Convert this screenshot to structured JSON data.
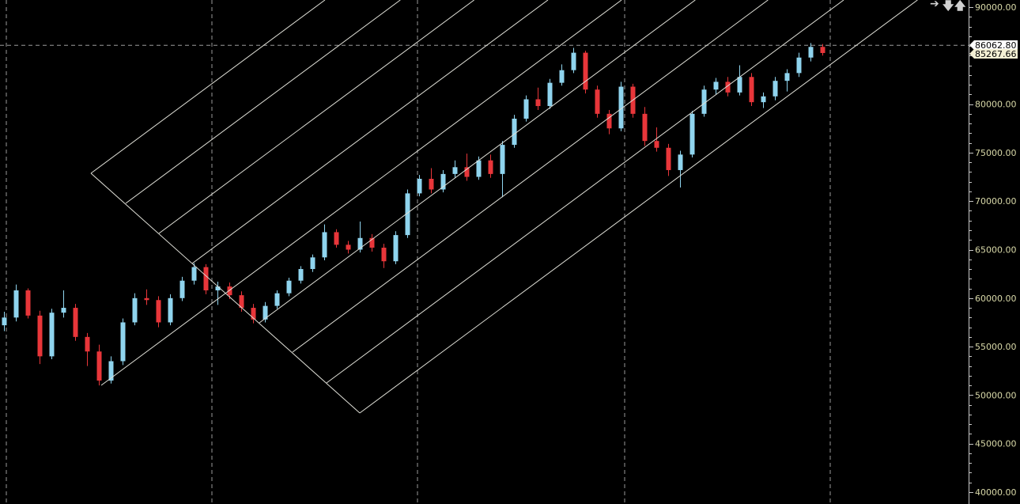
{
  "chart_data": {
    "type": "candlestick",
    "title": "",
    "xlabel": "",
    "ylabel": "",
    "ylim": [
      40000,
      90000
    ],
    "y_ticks": [
      "90000.00",
      "80000.00",
      "75000.00",
      "70000.00",
      "65000.00",
      "60000.00",
      "55000.00",
      "50000.00",
      "45000.00",
      "40000.00"
    ],
    "grid": true,
    "colors": {
      "up": "#8fd4ee",
      "down": "#e8363a",
      "grid": "#9a9a9a",
      "drawing": "#e0e0d8",
      "axis_text": "#d8d8a8",
      "background": "#000000"
    },
    "price_labels": {
      "crosshair": "86062.80",
      "last": "85267.66"
    },
    "crosshair_price": 86062.8,
    "ohlc": [
      [
        57200,
        58600,
        56600,
        58000
      ],
      [
        58000,
        61400,
        57600,
        60800
      ],
      [
        60800,
        61000,
        57900,
        58200
      ],
      [
        58200,
        58700,
        53200,
        54000
      ],
      [
        54000,
        58900,
        53700,
        58500
      ],
      [
        58500,
        60800,
        58000,
        59000
      ],
      [
        59000,
        59400,
        55600,
        56000
      ],
      [
        56000,
        56400,
        53000,
        54500
      ],
      [
        54500,
        55200,
        51000,
        51500
      ],
      [
        51500,
        54000,
        51200,
        53500
      ],
      [
        53500,
        57900,
        53100,
        57500
      ],
      [
        57500,
        60500,
        57200,
        60000
      ],
      [
        60000,
        60900,
        59300,
        59800
      ],
      [
        59800,
        60200,
        57000,
        57500
      ],
      [
        57500,
        60400,
        57200,
        60000
      ],
      [
        60000,
        62200,
        59700,
        61800
      ],
      [
        61800,
        63600,
        61400,
        63200
      ],
      [
        63200,
        63500,
        60400,
        60800
      ],
      [
        60800,
        61700,
        59300,
        61200
      ],
      [
        61200,
        61600,
        59900,
        60300
      ],
      [
        60300,
        60700,
        58600,
        59000
      ],
      [
        59000,
        59400,
        57400,
        57800
      ],
      [
        57800,
        59600,
        57500,
        59200
      ],
      [
        59200,
        60800,
        58900,
        60500
      ],
      [
        60500,
        62100,
        60200,
        61800
      ],
      [
        61800,
        63300,
        61500,
        63000
      ],
      [
        63000,
        64500,
        62700,
        64200
      ],
      [
        64200,
        67600,
        63900,
        66800
      ],
      [
        66800,
        67100,
        65200,
        65500
      ],
      [
        65500,
        65900,
        64600,
        65000
      ],
      [
        65000,
        67900,
        64700,
        66200
      ],
      [
        66200,
        66600,
        64800,
        65200
      ],
      [
        65200,
        65600,
        63100,
        63800
      ],
      [
        63800,
        66900,
        63500,
        66500
      ],
      [
        66500,
        71200,
        66200,
        70800
      ],
      [
        70800,
        72700,
        70500,
        72300
      ],
      [
        72300,
        73400,
        70800,
        71200
      ],
      [
        71200,
        73200,
        70900,
        72800
      ],
      [
        72800,
        74200,
        72400,
        73500
      ],
      [
        73500,
        74900,
        72100,
        72500
      ],
      [
        72500,
        74600,
        72200,
        74200
      ],
      [
        74200,
        74800,
        72400,
        72800
      ],
      [
        72800,
        76200,
        70400,
        75800
      ],
      [
        75800,
        78900,
        75500,
        78500
      ],
      [
        78500,
        80900,
        78200,
        80500
      ],
      [
        80500,
        81700,
        79400,
        79800
      ],
      [
        79800,
        82600,
        79500,
        82200
      ],
      [
        82200,
        84100,
        81900,
        83500
      ],
      [
        83500,
        85800,
        83200,
        85300
      ],
      [
        85300,
        85500,
        81100,
        81500
      ],
      [
        81500,
        81900,
        78600,
        79000
      ],
      [
        79000,
        79400,
        76900,
        77500
      ],
      [
        77500,
        82300,
        77200,
        81800
      ],
      [
        81800,
        82100,
        78600,
        79000
      ],
      [
        79000,
        79700,
        75700,
        76200
      ],
      [
        76200,
        77600,
        75100,
        75500
      ],
      [
        75500,
        75900,
        72600,
        73200
      ],
      [
        73200,
        75200,
        71400,
        74800
      ],
      [
        74800,
        79300,
        74500,
        79000
      ],
      [
        79000,
        81900,
        78700,
        81500
      ],
      [
        81500,
        82700,
        81000,
        82300
      ],
      [
        82300,
        82800,
        80800,
        81200
      ],
      [
        81200,
        84000,
        80900,
        82800
      ],
      [
        82800,
        83200,
        79800,
        80200
      ],
      [
        80200,
        81200,
        79600,
        80800
      ],
      [
        80800,
        82800,
        80400,
        82400
      ],
      [
        82400,
        83600,
        81300,
        83200
      ],
      [
        83200,
        85300,
        82800,
        84800
      ],
      [
        84800,
        86300,
        84400,
        85900
      ],
      [
        85900,
        86200,
        85000,
        85270
      ]
    ]
  },
  "toolbar": {
    "arrow_right": "➔",
    "arrow_down": "🡇",
    "arrow_up": "🡅"
  }
}
